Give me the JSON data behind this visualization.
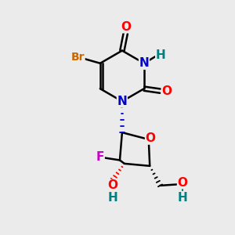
{
  "bg_color": "#ebebeb",
  "bond_color": "#000000",
  "atom_colors": {
    "O": "#ff0000",
    "N": "#0000cc",
    "Br": "#cc6600",
    "F": "#cc00cc",
    "H": "#008080",
    "C": "#000000"
  },
  "figsize": [
    3.0,
    3.0
  ],
  "dpi": 100
}
